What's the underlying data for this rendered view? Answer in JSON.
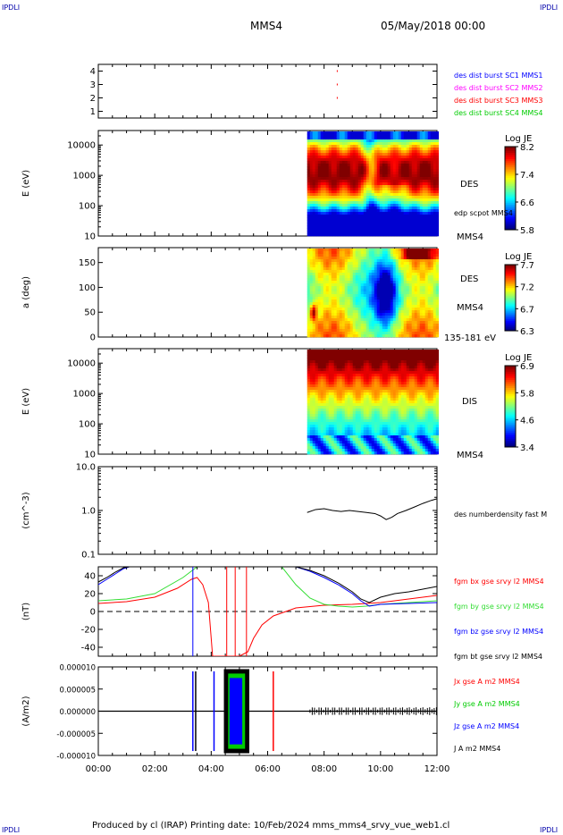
{
  "header": {
    "corner_tl": "IPDLI",
    "corner_tr": "IPDLI",
    "corner_bl": "IPDLI",
    "corner_br": "IPDLI",
    "spacecraft": "MMS4",
    "date": "05/May/2018 00:00"
  },
  "footer": "Produced by cl (IRAP)   Printing date: 10/Feb/2024   mms_mms4_srvy_vue_web1.cl",
  "colors": {
    "blue": "#0000ff",
    "magenta": "#ff00ff",
    "red": "#ff0000",
    "green": "#00cc00",
    "black": "#000000",
    "fgm_green": "#33dd33"
  },
  "chart_data": [
    {
      "type": "scatter",
      "id": "burst",
      "ylim": [
        0.5,
        4.5
      ],
      "yticks": [
        "1",
        "2",
        "3",
        "4"
      ],
      "legend": [
        {
          "name": "des dist burst SC1 MMS1",
          "color": "#0000ff"
        },
        {
          "name": "des dist burst SC2 MMS2",
          "color": "#ff00ff"
        },
        {
          "name": "des dist burst SC3 MMS3",
          "color": "#ff0000"
        },
        {
          "name": "des dist burst SC4 MMS4",
          "color": "#00cc00"
        }
      ],
      "points": [
        [
          8.45,
          3
        ],
        [
          8.45,
          2
        ],
        [
          8.45,
          4
        ]
      ]
    },
    {
      "type": "heatmap",
      "id": "des_energy",
      "ylabel": "E (eV)",
      "yscale": "log",
      "ylim": [
        10,
        30000
      ],
      "yticks": [
        "10",
        "100",
        "1000",
        "10000"
      ],
      "data_start_hour": 7.4,
      "side_label": "DES",
      "side_label2": "edp scpot MMS4",
      "side_label3": "MMS4",
      "colorbar": {
        "title": "Log JE",
        "ticks": [
          "8.2",
          "7.4",
          "6.6",
          "5.8"
        ]
      }
    },
    {
      "type": "heatmap",
      "id": "des_pitch",
      "ylabel": "a (deg)",
      "ylim": [
        0,
        180
      ],
      "yticks": [
        "0",
        "50",
        "100",
        "150"
      ],
      "data_start_hour": 7.4,
      "side_label": "DES",
      "side_label2": "MMS4",
      "side_label3": "135-181 eV",
      "colorbar": {
        "title": "Log JE",
        "ticks": [
          "7.7",
          "7.2",
          "6.7",
          "6.3"
        ]
      }
    },
    {
      "type": "heatmap",
      "id": "dis_energy",
      "ylabel": "E (eV)",
      "yscale": "log",
      "ylim": [
        10,
        30000
      ],
      "yticks": [
        "10",
        "100",
        "1000",
        "10000"
      ],
      "data_start_hour": 7.4,
      "side_label": "DIS",
      "side_label2": "MMS4",
      "colorbar": {
        "title": "Log JE",
        "ticks": [
          "6.9",
          "5.8",
          "4.6",
          "3.4"
        ]
      }
    },
    {
      "type": "line",
      "id": "density",
      "ylabel": "(cm^-3)",
      "yscale": "log",
      "ylim": [
        0.1,
        10
      ],
      "yticks": [
        "0.1",
        "1.0",
        "10.0"
      ],
      "series": [
        {
          "name": "des numberdensity fast M",
          "color": "#000000",
          "x": [
            7.4,
            7.7,
            8.0,
            8.3,
            8.6,
            8.9,
            9.2,
            9.5,
            9.8,
            10.0,
            10.2,
            10.4,
            10.6,
            10.9,
            11.2,
            11.5,
            11.8,
            12.0
          ],
          "y": [
            0.9,
            1.05,
            1.1,
            1.0,
            0.95,
            1.0,
            0.95,
            0.9,
            0.85,
            0.75,
            0.62,
            0.7,
            0.85,
            1.0,
            1.2,
            1.45,
            1.7,
            1.85
          ]
        }
      ]
    },
    {
      "type": "line",
      "id": "fgm",
      "ylabel": "(nT)",
      "ylim": [
        -50,
        50
      ],
      "yticks": [
        "-40",
        "-20",
        "0",
        "20",
        "40"
      ],
      "series": [
        {
          "name": "fgm bx gse srvy l2 MMS4",
          "color": "#ff0000",
          "x": [
            0,
            1,
            2,
            2.8,
            3.3,
            3.5,
            3.7,
            3.9,
            4.0,
            4.05,
            5.0,
            5.3,
            5.5,
            5.8,
            6.2,
            7.0,
            8.0,
            9.0,
            10.0,
            11.0,
            12.0
          ],
          "y": [
            9,
            11,
            16,
            26,
            36,
            38,
            30,
            10,
            -30,
            -50,
            -50,
            -45,
            -30,
            -15,
            -5,
            4,
            7,
            8,
            10,
            14,
            18
          ]
        },
        {
          "name": "fgm by gse srvy l2 MMS4",
          "color": "#33dd33",
          "x": [
            0,
            1,
            2,
            3,
            3.5,
            6.5,
            7.0,
            7.5,
            8.0,
            8.5,
            9.0,
            9.5,
            10.0,
            11.0,
            12.0
          ],
          "y": [
            12,
            14,
            20,
            38,
            50,
            50,
            30,
            15,
            8,
            6,
            5,
            6,
            8,
            10,
            12
          ]
        },
        {
          "name": "fgm bz gse srvy l2 MMS4",
          "color": "#0000ff",
          "x": [
            0,
            0.3,
            0.6,
            0.9,
            1.1,
            7.0,
            7.5,
            8.0,
            8.5,
            9.0,
            9.3,
            9.6,
            10.0,
            11.0,
            12.0
          ],
          "y": [
            30,
            36,
            42,
            48,
            50,
            50,
            45,
            38,
            30,
            20,
            12,
            6,
            8,
            9,
            10
          ]
        },
        {
          "name": "fgm bt gse srvy l2 MMS4",
          "color": "#000000",
          "x": [
            0,
            0.3,
            0.6,
            0.9,
            1.1,
            7.0,
            7.5,
            8.0,
            8.5,
            9.0,
            9.3,
            9.6,
            10.0,
            10.5,
            11.0,
            11.5,
            12.0
          ],
          "y": [
            33,
            38,
            44,
            49,
            50,
            50,
            46,
            40,
            32,
            22,
            14,
            10,
            16,
            20,
            22,
            25,
            28
          ]
        }
      ]
    },
    {
      "type": "line",
      "id": "current",
      "ylabel": "(A/m2)",
      "ylim": [
        -1e-05,
        1e-05
      ],
      "yticks": [
        "-0.000010",
        "-0.000005",
        "0.000000",
        "0.000005",
        "0.000010"
      ],
      "series": [
        {
          "name": "Jx gse A m2 MMS4",
          "color": "#ff0000"
        },
        {
          "name": "Jy gse A m2 MMS4",
          "color": "#00cc00"
        },
        {
          "name": "Jz gse A m2 MMS4",
          "color": "#0000ff"
        },
        {
          "name": "J A m2 MMS4",
          "color": "#000000"
        }
      ],
      "xlim": [
        0,
        12
      ],
      "xticks": [
        "00:00",
        "02:00",
        "04:00",
        "06:00",
        "08:00",
        "10:00",
        "12:00"
      ]
    }
  ]
}
